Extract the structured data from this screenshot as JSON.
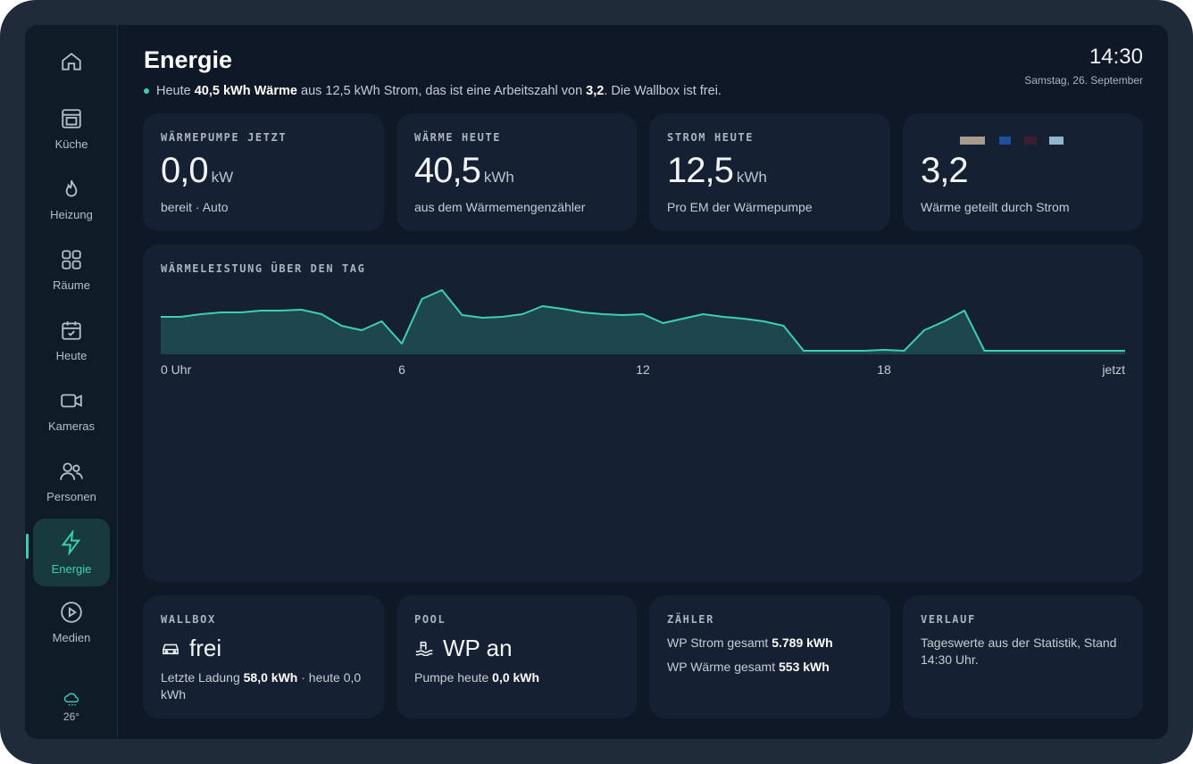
{
  "sidebar": {
    "items": [
      "Küche",
      "Heizung",
      "Räume",
      "Heute",
      "Kameras",
      "Personen",
      "Energie",
      "Medien"
    ],
    "weather": "26°"
  },
  "header": {
    "title": "Energie",
    "summary": [
      "Heute ",
      "40,5 kWh Wärme",
      " aus 12,5 kWh Strom, das ist eine Arbeitszahl von ",
      "3,2",
      ". Die Wallbox ist frei."
    ],
    "time": "14:30",
    "date": "Samstag, 26. September"
  },
  "cards": [
    {
      "label": "WÄRMEPUMPE JETZT",
      "value": "0,0",
      "unit": "kW",
      "note": "bereit · Auto"
    },
    {
      "label": "WÄRME HEUTE",
      "value": "40,5",
      "unit": "kWh",
      "note": "aus dem Wärmemengenzähler"
    },
    {
      "label": "STROM HEUTE",
      "value": "12,5",
      "unit": "kWh",
      "note": "Pro EM der Wärmepumpe"
    },
    {
      "value": "3,2",
      "note": "Wärme geteilt durch Strom"
    }
  ],
  "chart_data": {
    "type": "line",
    "title": "WÄRMELEISTUNG ÜBER DEN TAG",
    "color": "#3ecfb0",
    "x": [
      0,
      0.5,
      1,
      1.5,
      2,
      2.5,
      3,
      3.5,
      4,
      4.5,
      5,
      5.5,
      6,
      6.5,
      7,
      7.5,
      8,
      8.5,
      9,
      9.5,
      10,
      10.5,
      11,
      11.5,
      12,
      12.5,
      13,
      13.5,
      14,
      14.5,
      15,
      15.5,
      16,
      16.5,
      17,
      17.5,
      18,
      18.5,
      19,
      19.5,
      20,
      20.5,
      21,
      21.5,
      22,
      22.5,
      23,
      23.5,
      24
    ],
    "values": [
      4.2,
      4.2,
      4.5,
      4.7,
      4.7,
      4.9,
      4.9,
      5.0,
      4.5,
      3.2,
      2.7,
      3.7,
      1.2,
      6.2,
      7.2,
      4.4,
      4.1,
      4.2,
      4.5,
      5.4,
      5.1,
      4.7,
      4.5,
      4.4,
      4.5,
      3.5,
      4.0,
      4.5,
      4.2,
      4.0,
      3.7,
      3.2,
      0.4,
      0.4,
      0.4,
      0.4,
      0.5,
      0.4,
      2.7,
      3.7,
      4.9,
      0.4,
      0.4,
      0.4,
      0.4,
      0.4,
      0.4,
      0.4,
      0.4
    ],
    "xlim": [
      0,
      24
    ],
    "xticks": [
      {
        "value": 0,
        "label": "0 Uhr"
      },
      6,
      12,
      18,
      {
        "value": 24,
        "label": "jetzt"
      }
    ],
    "ylim": [
      0,
      8
    ]
  },
  "bottom": [
    {
      "label": "WALLBOX",
      "value": "frei",
      "note": [
        "Letzte Ladung ",
        "58,0 kWh",
        " · heute 0,0 kWh"
      ]
    },
    {
      "label": "POOL",
      "value": "WP an",
      "note": [
        "Pumpe heute ",
        "0,0 kWh"
      ]
    },
    {
      "label": "ZÄHLER",
      "lines": [
        [
          "WP Strom gesamt ",
          "5.789 kWh"
        ],
        [
          "WP Wärme gesamt ",
          "553 kWh"
        ]
      ]
    },
    {
      "label": "VERLAUF",
      "note": "Tageswerte aus der Statistik, Stand 14:30 Uhr."
    }
  ]
}
